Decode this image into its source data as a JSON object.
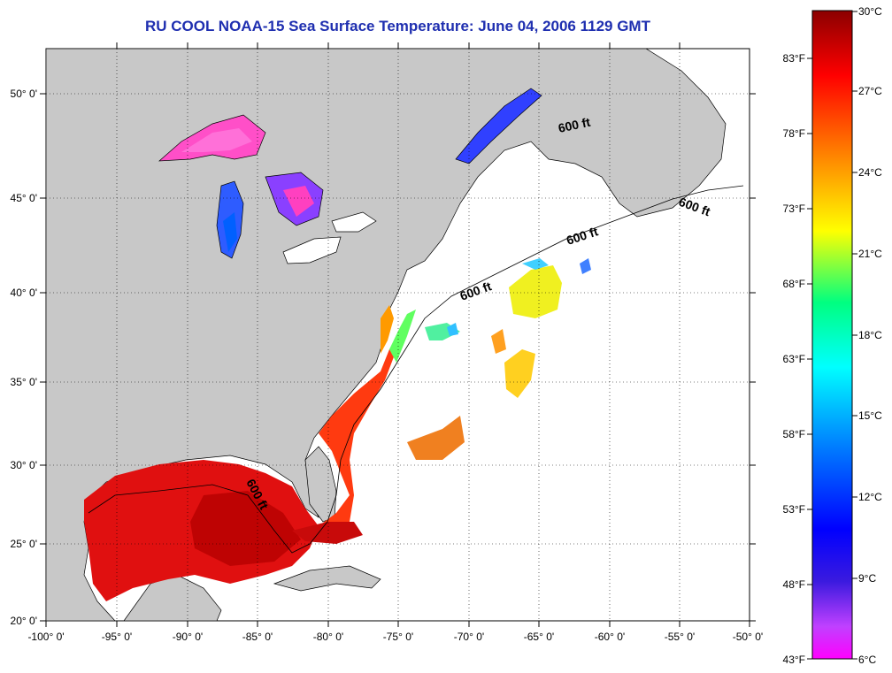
{
  "title": "RU COOL  NOAA-15  Sea Surface Temperature:  June 04, 2006 1129 GMT",
  "map": {
    "lat_labels": [
      "50° 0'",
      "45° 0'",
      "40° 0'",
      "35° 0'",
      "30° 0'",
      "25° 0'",
      "20° 0'"
    ],
    "lon_labels": [
      "-100° 0'",
      "-95° 0'",
      "-90° 0'",
      "-85° 0'",
      "-80° 0'",
      "-75° 0'",
      "-70° 0'",
      "-65° 0'",
      "-60° 0'",
      "-55° 0'",
      "-50° 0'"
    ],
    "contour_labels": [
      "600 ft",
      "600 ft",
      "600 ft",
      "600 ft",
      "600 ft"
    ],
    "land_color": "#c8c8c8",
    "ocean_color": "#ffffff"
  },
  "colorbar": {
    "celsius_labels": [
      "30°C",
      "27°C",
      "24°C",
      "21°C",
      "18°C",
      "15°C",
      "12°C",
      "9°C",
      "6°C"
    ],
    "fahrenheit_labels": [
      "83°F",
      "78°F",
      "73°F",
      "68°F",
      "63°F",
      "58°F",
      "53°F",
      "48°F",
      "43°F"
    ]
  }
}
